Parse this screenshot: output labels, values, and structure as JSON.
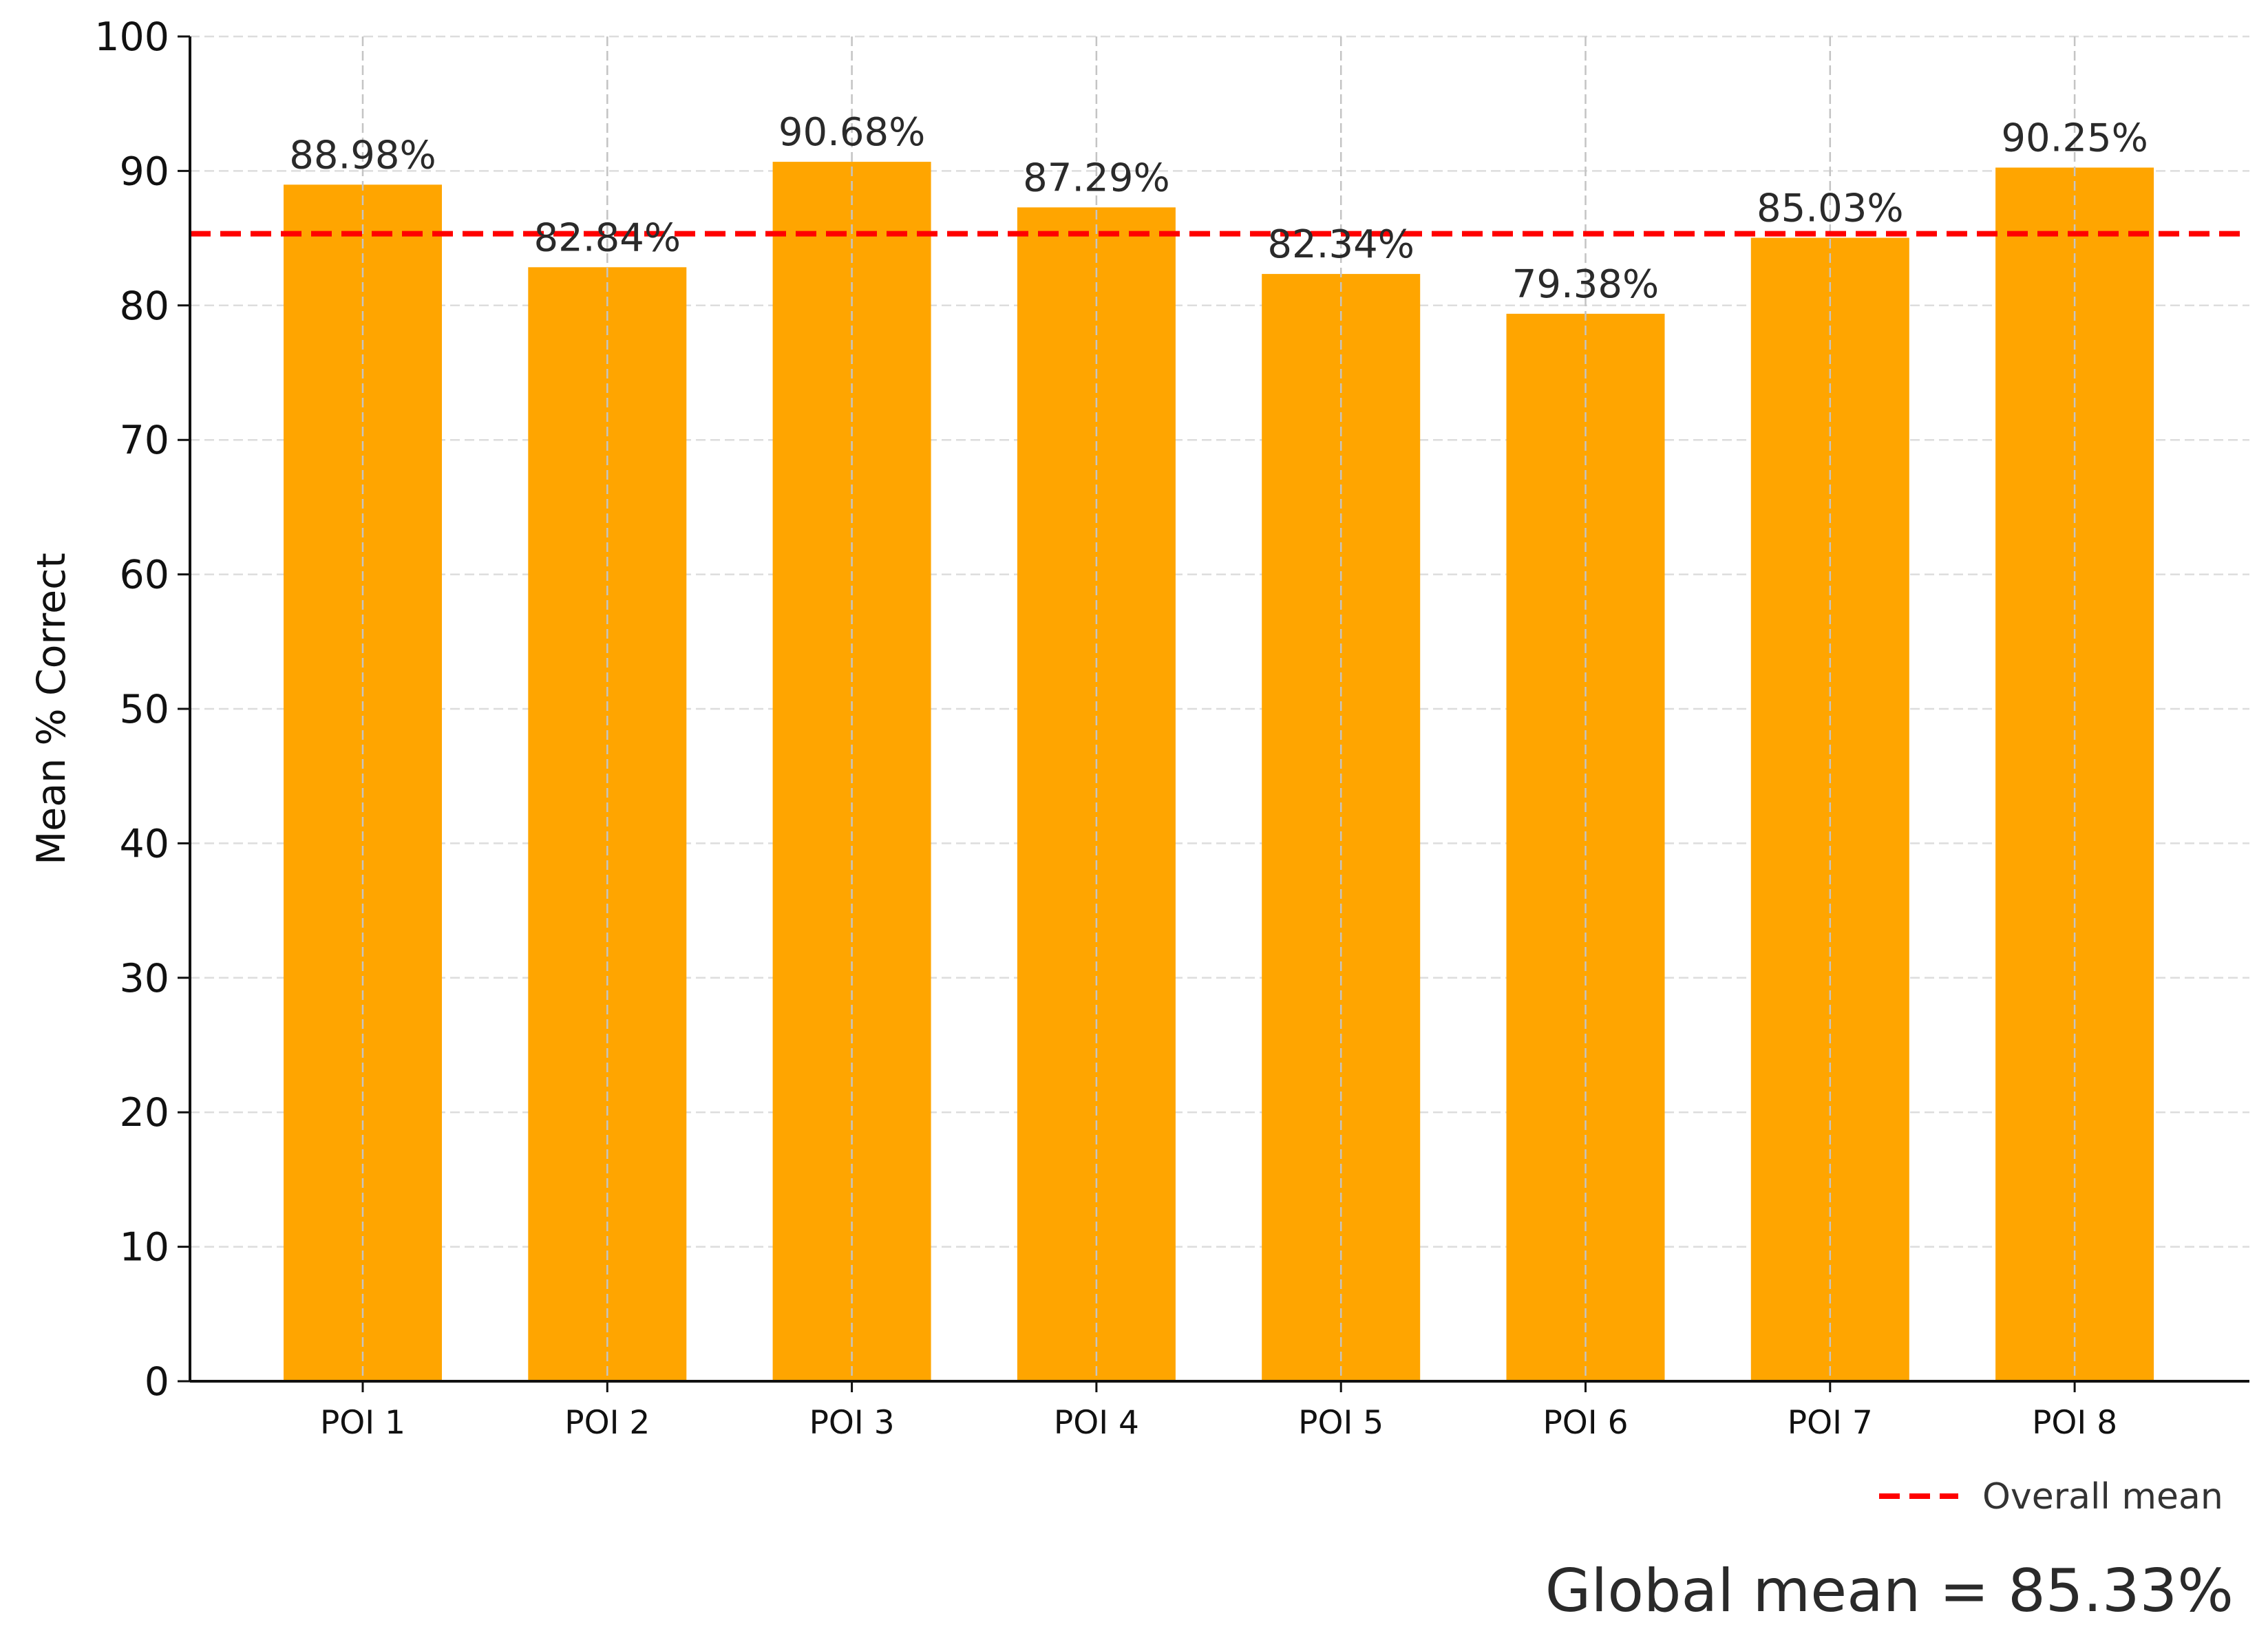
{
  "chart_data": {
    "type": "bar",
    "categories": [
      "POI 1",
      "POI 2",
      "POI 3",
      "POI 4",
      "POI 5",
      "POI 6",
      "POI 7",
      "POI 8"
    ],
    "values": [
      88.98,
      82.84,
      90.68,
      87.29,
      82.34,
      79.38,
      85.03,
      90.25
    ],
    "data_labels": [
      "88.98%",
      "82.84%",
      "90.68%",
      "87.29%",
      "82.34%",
      "79.38%",
      "85.03%",
      "90.25%"
    ],
    "ylabel": "Mean % Correct",
    "xlabel": "",
    "ylim": [
      0,
      100
    ],
    "yticks": [
      "0",
      "10",
      "20",
      "30",
      "40",
      "50",
      "60",
      "70",
      "80",
      "90",
      "100"
    ],
    "grid": true,
    "reference_line": {
      "value": 85.33,
      "label": "Overall mean",
      "style": "dashed",
      "color": "#ff0000"
    },
    "legend": {
      "entries": [
        "Overall mean"
      ],
      "placement": "bottom-right"
    },
    "annotation": "Global mean = 85.33%",
    "bar_color": "#ffa500"
  }
}
